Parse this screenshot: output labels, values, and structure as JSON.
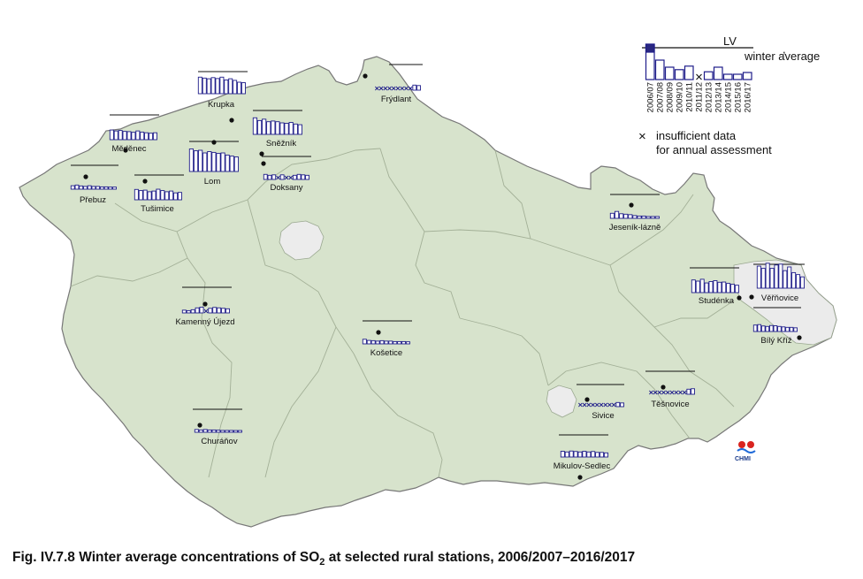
{
  "caption": {
    "prefix": "Fig. IV.7.8  Winter average concentrations of SO",
    "subscript": "2",
    "suffix": " at selected rural stations, 2006/2007–2016/2017"
  },
  "colors": {
    "country_fill": "#d7e3cc",
    "country_border": "#777777",
    "region_border": "#9aa890",
    "city_fill": "#ededed",
    "bar_stroke": "#1f1d8a",
    "bar_fill": "#ffffff",
    "bar_exceed_fill": "#2a2880",
    "lv_line": "#111111",
    "station_dot": "#111111"
  },
  "legend": {
    "lv_label": "LV",
    "winter_label": "winter average",
    "years": [
      "2006/07",
      "2007/08",
      "2008/09",
      "2009/10",
      "2010/11",
      "2011/12",
      "2012/13",
      "2013/14",
      "2014/15",
      "2015/16",
      "2016/17"
    ],
    "sample_values": [
      1.0,
      0.55,
      0.35,
      0.28,
      0.38,
      0.0,
      0.22,
      0.35,
      0.15,
      0.15,
      0.2
    ],
    "sample_status": [
      "exceed",
      "ok",
      "ok",
      "ok",
      "ok",
      "insufficient",
      "ok",
      "ok",
      "ok",
      "ok",
      "ok"
    ],
    "insufficient_symbol": "×",
    "insufficient_line1": "insufficient data",
    "insufficient_line2": "for annual assessment"
  },
  "logo": {
    "text": "CHMI"
  },
  "stations": [
    {
      "name": "Krupka",
      "values": [
        0.72,
        0.68,
        0.65,
        0.7,
        0.66,
        0.72,
        0.6,
        0.65,
        0.58,
        0.5,
        0.48
      ],
      "missing": []
    },
    {
      "name": "Frýdlant",
      "values": [
        0,
        0,
        0,
        0,
        0,
        0,
        0,
        0,
        0,
        0.22,
        0.2
      ],
      "missing": [
        0,
        1,
        2,
        3,
        4,
        5,
        6,
        7,
        8
      ]
    },
    {
      "name": "Měděnec",
      "values": [
        0.42,
        0.38,
        0.4,
        0.36,
        0.35,
        0.32,
        0.38,
        0.33,
        0.3,
        0.28,
        0.3
      ],
      "missing": []
    },
    {
      "name": "Sněžník",
      "values": [
        0.72,
        0.6,
        0.66,
        0.55,
        0.58,
        0.55,
        0.5,
        0.48,
        0.52,
        0.45,
        0.42
      ],
      "missing": []
    },
    {
      "name": "Lom",
      "values": [
        0.85,
        0.78,
        0.8,
        0.7,
        0.75,
        0.72,
        0.68,
        0.7,
        0.62,
        0.58,
        0.55
      ],
      "missing": []
    },
    {
      "name": "Přebuz",
      "values": [
        0.15,
        0.18,
        0.14,
        0.12,
        0.15,
        0.12,
        0.12,
        0.1,
        0.1,
        0.09,
        0.09
      ],
      "missing": []
    },
    {
      "name": "Tušimice",
      "values": [
        0.45,
        0.4,
        0.42,
        0.35,
        0.38,
        0.46,
        0.4,
        0.35,
        0.38,
        0.3,
        0.32
      ],
      "missing": []
    },
    {
      "name": "Doksany",
      "values": [
        0.22,
        0.18,
        0.2,
        0,
        0.2,
        0,
        0,
        0.18,
        0.22,
        0.2,
        0.18
      ],
      "missing": [
        3,
        5,
        6
      ]
    },
    {
      "name": "Jeseník-lázně",
      "values": [
        0.22,
        0.3,
        0.2,
        0.18,
        0.16,
        0.12,
        0.1,
        0.1,
        0.08,
        0.08,
        0.08
      ],
      "missing": []
    },
    {
      "name": "Kamenný Újezd",
      "values": [
        0.12,
        0.1,
        0.14,
        0.22,
        0.25,
        0,
        0.2,
        0.24,
        0.22,
        0.2,
        0.18
      ],
      "missing": [
        5
      ]
    },
    {
      "name": "Studénka",
      "values": [
        0.55,
        0.5,
        0.58,
        0.42,
        0.48,
        0.52,
        0.45,
        0.46,
        0.4,
        0.36,
        0.32
      ],
      "missing": []
    },
    {
      "name": "Věřňovice",
      "values": [
        0.78,
        0.7,
        0.88,
        0.7,
        0.82,
        0.85,
        0.62,
        0.75,
        0.55,
        0.48,
        0.4
      ],
      "missing": []
    },
    {
      "name": "Bílý Kříž",
      "values": [
        0.28,
        0.3,
        0.24,
        0.22,
        0.26,
        0.25,
        0.22,
        0.2,
        0.18,
        0.18,
        0.16
      ],
      "missing": []
    },
    {
      "name": "Košetice",
      "values": [
        0.2,
        0.15,
        0.14,
        0.12,
        0.14,
        0.12,
        0.12,
        0.1,
        0.1,
        0.1,
        0.09
      ],
      "missing": []
    },
    {
      "name": "Sivice",
      "values": [
        0,
        0,
        0,
        0,
        0,
        0,
        0,
        0,
        0,
        0.18,
        0.16
      ],
      "missing": [
        0,
        1,
        2,
        3,
        4,
        5,
        6,
        7,
        8
      ]
    },
    {
      "name": "Těšnovice",
      "values": [
        0,
        0,
        0,
        0,
        0,
        0,
        0,
        0,
        0,
        0.22,
        0.24
      ],
      "missing": [
        0,
        1,
        2,
        3,
        4,
        5,
        6,
        7,
        8
      ]
    },
    {
      "name": "Churáňov",
      "values": [
        0.12,
        0.1,
        0.12,
        0.1,
        0.1,
        0.09,
        0.08,
        0.08,
        0.08,
        0.07,
        0.07
      ],
      "missing": []
    },
    {
      "name": "Mikulov-Sedlec",
      "values": [
        0.25,
        0.22,
        0.26,
        0.24,
        0.22,
        0.25,
        0.22,
        0.24,
        0.2,
        0.2,
        0.18
      ],
      "missing": []
    }
  ]
}
